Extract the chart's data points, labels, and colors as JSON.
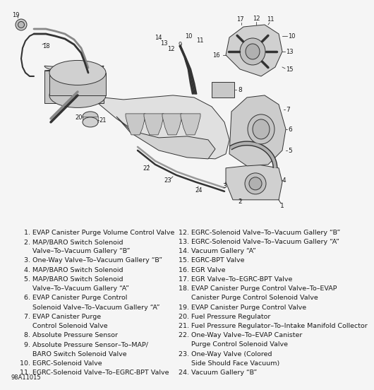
{
  "figure_code": "98A11015",
  "background_color": "#f5f5f5",
  "text_color": "#1a1a1a",
  "legend_fontsize": 6.8,
  "legend_left": [
    [
      "  1. EVAP Canister Purge Volume Control Valve",
      false
    ],
    [
      "  2. MAP/BARO Switch Solenoid",
      false
    ],
    [
      "      Valve–To–Vacuum Gallery “B”",
      false
    ],
    [
      "  3. One-Way Valve–To–Vacuum Gallery “B”",
      false
    ],
    [
      "  4. MAP/BARO Switch Solenoid",
      false
    ],
    [
      "  5. MAP/BARO Switch Solenoid",
      false
    ],
    [
      "      Valve–To–Vacuum Gallery “A”",
      false
    ],
    [
      "  6. EVAP Canister Purge Control",
      false
    ],
    [
      "      Solenoid Valve–To–Vacuum Gallery “A”",
      false
    ],
    [
      "  7. EVAP Canister Purge",
      false
    ],
    [
      "      Control Solenoid Valve",
      false
    ],
    [
      "  8. Absolute Pressure Sensor",
      false
    ],
    [
      "  9. Absolute Pressure Sensor–To–MAP/",
      false
    ],
    [
      "      BARO Switch Solenoid Valve",
      false
    ],
    [
      "10. EGRC-Solenoid Valve",
      false
    ],
    [
      "11. EGRC-Solenoid Valve–To–EGRC-BPT Valve",
      false
    ]
  ],
  "legend_right": [
    [
      "12. EGRC-Solenoid Valve–To–Vacuum Gallery “B”",
      false
    ],
    [
      "13. EGRC-Solenoid Valve–To–Vacuum Gallery “A”",
      false
    ],
    [
      "14. Vacuum Gallery “A”",
      false
    ],
    [
      "15. EGRC-BPT Valve",
      false
    ],
    [
      "16. EGR Valve",
      false
    ],
    [
      "17. EGR Valve–To–EGRC-BPT Valve",
      false
    ],
    [
      "18. EVAP Canister Purge Control Valve–To–EVAP",
      false
    ],
    [
      "      Canister Purge Control Solenoid Valve",
      false
    ],
    [
      "19. EVAP Canister Purge Control Valve",
      false
    ],
    [
      "20. Fuel Pressure Regulator",
      false
    ],
    [
      "21. Fuel Pressure Regulator–To–Intake Manifold Collector",
      false
    ],
    [
      "22. One-Way Valve–To–EVAP Canister",
      false
    ],
    [
      "      Purge Control Solenoid Valve",
      false
    ],
    [
      "23. One-Way Valve (Colored",
      false
    ],
    [
      "      Side Should Face Vacuum)",
      false
    ],
    [
      "24. Vacuum Gallery “B”",
      false
    ]
  ]
}
